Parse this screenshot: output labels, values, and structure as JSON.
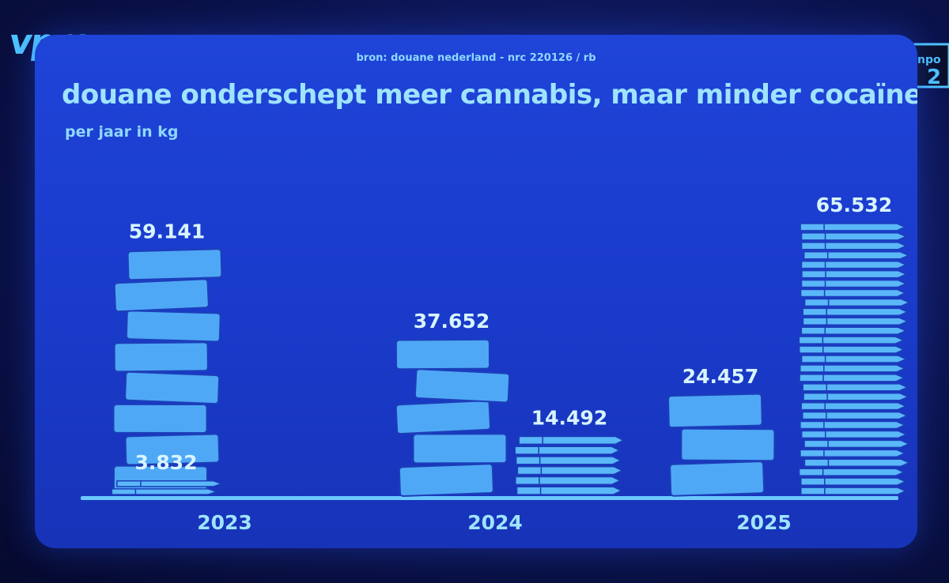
{
  "source": "bron: douane nederland - nrc 220126 / rb",
  "title": "douane onderschept meer cannabis, maar minder cocaïne",
  "subtitle": "per jaar in kg",
  "branding": {
    "channel_logo": "vpro",
    "badge": "npo 2"
  },
  "colors": {
    "cannabis_block": "#4fa8f6",
    "cocaine_brick": "#5ab8f8",
    "baseline": "#6cc8ff",
    "label": "#d8f4ff"
  },
  "chart_data": {
    "type": "bar",
    "categories": [
      "2023",
      "2024",
      "2025"
    ],
    "series": [
      {
        "name": "",
        "values": [
          59141,
          37652,
          24457
        ],
        "display": [
          "59.141",
          "37.652",
          "24.457"
        ]
      },
      {
        "name": "",
        "values": [
          3832,
          14492,
          65532
        ],
        "display": [
          "3.832",
          "14.492",
          "65.532"
        ]
      }
    ],
    "title": "douane onderschept meer cannabis, maar minder cocaïne",
    "xlabel": "",
    "ylabel": "per jaar in kg",
    "grid": false
  }
}
